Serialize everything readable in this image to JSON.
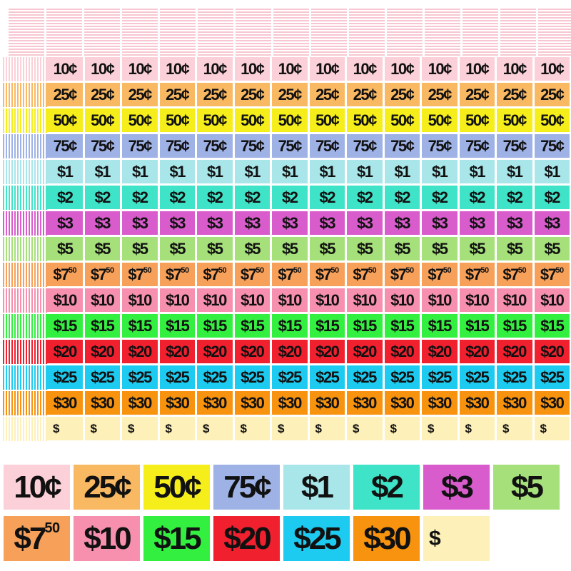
{
  "denominations": [
    {
      "label": "10¢",
      "color": "#fcd0d8"
    },
    {
      "label": "25¢",
      "color": "#f9b862"
    },
    {
      "label": "50¢",
      "color": "#f5ee1a"
    },
    {
      "label": "75¢",
      "color": "#9fb2e6"
    },
    {
      "label": "$1",
      "color": "#a8e6ea"
    },
    {
      "label": "$2",
      "color": "#3fe3c8"
    },
    {
      "label": "$3",
      "color": "#d95ccc"
    },
    {
      "label": "$5",
      "color": "#a6e07a"
    },
    {
      "label": "$7",
      "sup": "50",
      "color": "#f7a05a"
    },
    {
      "label": "$10",
      "color": "#f78fae"
    },
    {
      "label": "$15",
      "color": "#33f040"
    },
    {
      "label": "$20",
      "color": "#f0202f"
    },
    {
      "label": "$25",
      "color": "#1ecbf0"
    },
    {
      "label": "$30",
      "color": "#f7930f"
    },
    {
      "label": "$",
      "color": "#fdf0b8",
      "blank": true
    }
  ],
  "columns_per_row": 14
}
